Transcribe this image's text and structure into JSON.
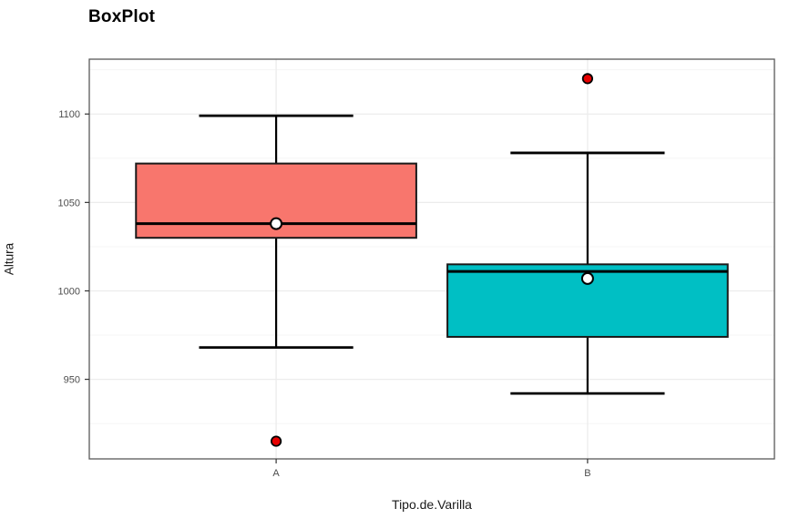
{
  "title": "BoxPlot",
  "axes": {
    "y_label": "Altura",
    "x_label": "Tipo.de.Varilla",
    "y_tick_labels": [
      "950",
      "1000",
      "1050",
      "1100"
    ],
    "x_tick_labels": [
      "A",
      "B"
    ]
  },
  "chart_data": {
    "type": "boxplot",
    "title": "BoxPlot",
    "xlabel": "Tipo.de.Varilla",
    "ylabel": "Altura",
    "categories": [
      "A",
      "B"
    ],
    "ylim": [
      905,
      1131
    ],
    "y_major_ticks": [
      950,
      1000,
      1050,
      1100
    ],
    "y_minor_gridlines": [
      925,
      975,
      1025,
      1075,
      1125
    ],
    "grid": true,
    "legend": "none",
    "series": [
      {
        "name": "A",
        "fill": "#F8766D",
        "whisker_low": 968,
        "q1": 1030,
        "median": 1038,
        "q3": 1072,
        "whisker_high": 1099,
        "mean": 1038,
        "outliers": [
          915
        ]
      },
      {
        "name": "B",
        "fill": "#00BFC4",
        "whisker_low": 942,
        "q1": 974,
        "median": 1011,
        "q3": 1015,
        "whisker_high": 1078,
        "mean": 1007,
        "outliers": [
          1120
        ]
      }
    ]
  },
  "colors": {
    "box_stroke": "#1A1A1A",
    "median_line": "#000000",
    "whisker": "#000000",
    "outlier_fill": "#E60000",
    "outlier_stroke": "#000000",
    "mean_fill": "#FFFFFF",
    "mean_stroke": "#000000",
    "grid_major": "#ECECEC",
    "grid_minor": "#F4F4F4",
    "panel_border": "#595959",
    "panel_bg": "#FFFFFF",
    "tick_mark": "#333333",
    "tick_label": "#4D4D4D",
    "title_color": "#000000",
    "axis_label_color": "#1A1A1A"
  }
}
